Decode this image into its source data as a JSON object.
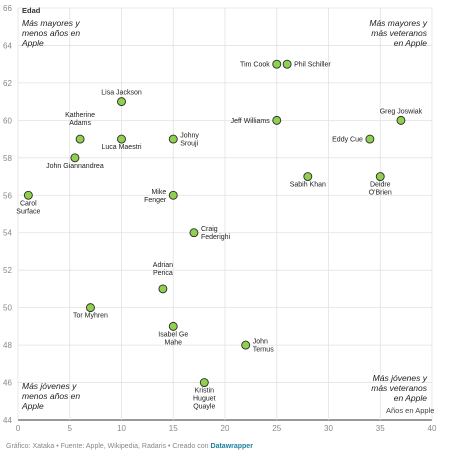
{
  "chart_data": {
    "type": "scatter",
    "ylabel": "Edad",
    "xlabel": "Años en Apple",
    "xlim": [
      0,
      40
    ],
    "ylim": [
      44,
      66
    ],
    "xticks": [
      0,
      5,
      10,
      15,
      20,
      25,
      30,
      35,
      40
    ],
    "yticks": [
      44,
      46,
      48,
      50,
      52,
      54,
      56,
      58,
      60,
      62,
      64,
      66
    ],
    "grid": true,
    "point_color": "#8fd14f",
    "points": [
      {
        "x": 1,
        "y": 56,
        "label": "Carol Surface"
      },
      {
        "x": 5.5,
        "y": 58,
        "label": "John Giannandrea"
      },
      {
        "x": 6,
        "y": 59,
        "label": "Katherine Adams"
      },
      {
        "x": 7,
        "y": 50,
        "label": "Tor Myhren"
      },
      {
        "x": 10,
        "y": 61,
        "label": "Lisa Jackson"
      },
      {
        "x": 10,
        "y": 59,
        "label": "Luca Maestri"
      },
      {
        "x": 14,
        "y": 51,
        "label": "Adrian Perica"
      },
      {
        "x": 15,
        "y": 59,
        "label": "Johny Srouji"
      },
      {
        "x": 15,
        "y": 56,
        "label": "Mike Fenger"
      },
      {
        "x": 15,
        "y": 49,
        "label": "Isabel Ge Mahe"
      },
      {
        "x": 17,
        "y": 54,
        "label": "Craig Federighi"
      },
      {
        "x": 18,
        "y": 46,
        "label": "Kristin Huguet Quayle"
      },
      {
        "x": 22,
        "y": 48,
        "label": "John Ternus"
      },
      {
        "x": 25,
        "y": 63,
        "label": "Tim Cook"
      },
      {
        "x": 26,
        "y": 63,
        "label": "Phil Schiller"
      },
      {
        "x": 25,
        "y": 60,
        "label": "Jeff Williams"
      },
      {
        "x": 28,
        "y": 57,
        "label": "Sabih Khan"
      },
      {
        "x": 34,
        "y": 59,
        "label": "Eddy Cue"
      },
      {
        "x": 35,
        "y": 57,
        "label": "Deidre O'Brien"
      },
      {
        "x": 37,
        "y": 60,
        "label": "Greg Joswiak"
      }
    ],
    "annotations": {
      "top_left": [
        "Más mayores y",
        "menos años en",
        "Apple"
      ],
      "top_right": [
        "Más mayores y",
        "más veteranos",
        "en Apple"
      ],
      "bottom_left": [
        "Más jóvenes y",
        "menos años en",
        "Apple"
      ],
      "bottom_right": [
        "Más jóvenes y",
        "más veteranos",
        "en Apple"
      ]
    }
  },
  "footer": {
    "text": "Gráfico: Xataka • Fuente: Apple, Wikipedia, Radaris • Creado con ",
    "link": "Datawrapper"
  }
}
